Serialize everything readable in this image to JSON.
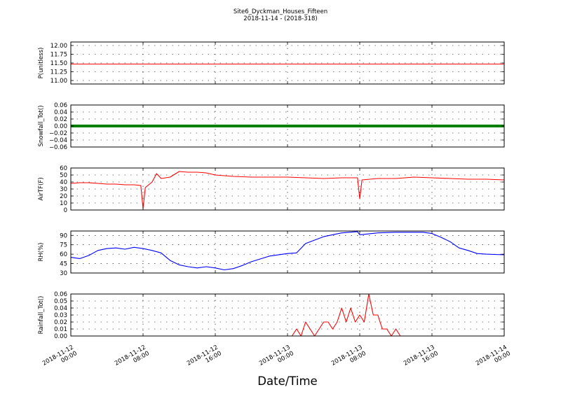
{
  "header": {
    "title": "Site6_Dyckman_Houses_Fifteen",
    "subtitle": "2018-11-14 - (2018-318)"
  },
  "xlabel": "Date/Time",
  "x_range": [
    "2018-11-12 00:00",
    "2018-11-14 00:00"
  ],
  "x_ticks": [
    {
      "value": "2018-11-12 00:00",
      "line1": "2018-11-12",
      "line2": "00:00"
    },
    {
      "value": "2018-11-12 08:00",
      "line1": "2018-11-12",
      "line2": "08:00"
    },
    {
      "value": "2018-11-12 16:00",
      "line1": "2018-11-12",
      "line2": "16:00"
    },
    {
      "value": "2018-11-13 00:00",
      "line1": "2018-11-13",
      "line2": "00:00"
    },
    {
      "value": "2018-11-13 08:00",
      "line1": "2018-11-13",
      "line2": "08:00"
    },
    {
      "value": "2018-11-13 16:00",
      "line1": "2018-11-13",
      "line2": "16:00"
    },
    {
      "value": "2018-11-14 00:00",
      "line1": "2018-11-14",
      "line2": "00:00"
    }
  ],
  "colors": {
    "red": "#ff0000",
    "green": "#008000",
    "blue": "#0000ff",
    "axis": "#000000"
  },
  "chart_data": [
    {
      "type": "line",
      "ylabel": "P(unitless)",
      "ylim": [
        10.9,
        12.1
      ],
      "yticks": [
        "11.00",
        "11.25",
        "11.50",
        "11.75",
        "12.00"
      ],
      "grid": true,
      "series": [
        {
          "color": "#ff0000",
          "x": [
            "2018-11-12 00:00",
            "2018-11-14 00:00"
          ],
          "y": [
            11.47,
            11.47
          ]
        }
      ]
    },
    {
      "type": "line",
      "ylabel": "Snowfall_Tot()",
      "ylim": [
        -0.06,
        0.06
      ],
      "yticks": [
        "−0.06",
        "−0.04",
        "−0.02",
        "0.00",
        "0.02",
        "0.04",
        "0.06"
      ],
      "grid": true,
      "series": [
        {
          "color": "#008000",
          "thick": true,
          "x": [
            "2018-11-12 00:00",
            "2018-11-14 00:00"
          ],
          "y": [
            0,
            0
          ]
        }
      ]
    },
    {
      "type": "line",
      "ylabel": "AirTF(F)",
      "ylim": [
        0,
        60
      ],
      "yticks": [
        "0",
        "10",
        "20",
        "30",
        "40",
        "50",
        "60"
      ],
      "grid": true,
      "series": [
        {
          "color": "#ff0000",
          "x": [
            "2018-11-12 00:00",
            "2018-11-12 01:00",
            "2018-11-12 02:00",
            "2018-11-12 03:00",
            "2018-11-12 04:00",
            "2018-11-12 05:00",
            "2018-11-12 06:00",
            "2018-11-12 07:00",
            "2018-11-12 07:45",
            "2018-11-12 08:00",
            "2018-11-12 08:15",
            "2018-11-12 09:00",
            "2018-11-12 09:30",
            "2018-11-12 10:00",
            "2018-11-12 10:30",
            "2018-11-12 11:00",
            "2018-11-12 12:00",
            "2018-11-12 13:00",
            "2018-11-12 14:00",
            "2018-11-12 15:00",
            "2018-11-12 16:00",
            "2018-11-12 18:00",
            "2018-11-12 20:00",
            "2018-11-12 22:00",
            "2018-11-13 00:00",
            "2018-11-13 02:00",
            "2018-11-13 04:00",
            "2018-11-13 06:00",
            "2018-11-13 07:45",
            "2018-11-13 08:00",
            "2018-11-13 08:15",
            "2018-11-13 10:00",
            "2018-11-13 12:00",
            "2018-11-13 14:00",
            "2018-11-13 16:00",
            "2018-11-13 18:00",
            "2018-11-13 20:00",
            "2018-11-13 22:00",
            "2018-11-14 00:00"
          ],
          "y": [
            38,
            39,
            39,
            38,
            37,
            37,
            36,
            36,
            35,
            2,
            32,
            40,
            52,
            45,
            46,
            47,
            55,
            54,
            54,
            53,
            50,
            48,
            47,
            47,
            47,
            46,
            45,
            46,
            46,
            16,
            43,
            45,
            45,
            47,
            46,
            45,
            44,
            44,
            43
          ]
        }
      ]
    },
    {
      "type": "line",
      "ylabel": "RH(%)",
      "ylim": [
        30,
        97
      ],
      "yticks": [
        "30",
        "45",
        "60",
        "75",
        "90"
      ],
      "grid": true,
      "series": [
        {
          "color": "#0000ff",
          "x": [
            "2018-11-12 00:00",
            "2018-11-12 01:00",
            "2018-11-12 02:00",
            "2018-11-12 03:00",
            "2018-11-12 04:00",
            "2018-11-12 05:00",
            "2018-11-12 06:00",
            "2018-11-12 07:00",
            "2018-11-12 08:00",
            "2018-11-12 09:00",
            "2018-11-12 10:00",
            "2018-11-12 11:00",
            "2018-11-12 12:00",
            "2018-11-12 13:00",
            "2018-11-12 14:00",
            "2018-11-12 15:00",
            "2018-11-12 16:00",
            "2018-11-12 17:00",
            "2018-11-12 18:00",
            "2018-11-12 19:00",
            "2018-11-12 20:00",
            "2018-11-12 22:00",
            "2018-11-13 00:00",
            "2018-11-13 01:00",
            "2018-11-13 02:00",
            "2018-11-13 04:00",
            "2018-11-13 06:00",
            "2018-11-13 07:45",
            "2018-11-13 08:00",
            "2018-11-13 10:00",
            "2018-11-13 12:00",
            "2018-11-13 14:00",
            "2018-11-13 15:00",
            "2018-11-13 16:00",
            "2018-11-13 17:00",
            "2018-11-13 18:00",
            "2018-11-13 19:00",
            "2018-11-13 20:00",
            "2018-11-13 21:00",
            "2018-11-13 22:00",
            "2018-11-14 00:00"
          ],
          "y": [
            55,
            53,
            58,
            66,
            69,
            70,
            68,
            71,
            69,
            66,
            62,
            50,
            43,
            40,
            38,
            40,
            38,
            35,
            37,
            42,
            48,
            57,
            61,
            62,
            77,
            88,
            94,
            96,
            91,
            94,
            95,
            95,
            95,
            93,
            87,
            80,
            70,
            66,
            61,
            60,
            59
          ]
        }
      ]
    },
    {
      "type": "line",
      "ylabel": "Rainfall_Tot()",
      "ylim": [
        0,
        0.06
      ],
      "yticks": [
        "0.00",
        "0.01",
        "0.02",
        "0.03",
        "0.04",
        "0.05",
        "0.06"
      ],
      "grid": true,
      "series": [
        {
          "color": "#ff0000",
          "x": [
            "2018-11-12 00:00",
            "2018-11-13 00:00",
            "2018-11-13 00:30",
            "2018-11-13 01:00",
            "2018-11-13 01:30",
            "2018-11-13 01:45",
            "2018-11-13 02:00",
            "2018-11-13 02:30",
            "2018-11-13 03:00",
            "2018-11-13 03:30",
            "2018-11-13 04:00",
            "2018-11-13 04:30",
            "2018-11-13 05:00",
            "2018-11-13 05:30",
            "2018-11-13 06:00",
            "2018-11-13 06:30",
            "2018-11-13 07:00",
            "2018-11-13 07:30",
            "2018-11-13 08:00",
            "2018-11-13 08:30",
            "2018-11-13 09:00",
            "2018-11-13 09:30",
            "2018-11-13 10:00",
            "2018-11-13 10:30",
            "2018-11-13 11:00",
            "2018-11-13 11:30",
            "2018-11-13 12:00",
            "2018-11-13 12:30",
            "2018-11-13 13:00",
            "2018-11-13 13:30",
            "2018-11-14 00:00"
          ],
          "y": [
            0,
            0,
            0,
            0.01,
            0,
            0.01,
            0.02,
            0.01,
            0,
            0.01,
            0.02,
            0.02,
            0.01,
            0.02,
            0.04,
            0.02,
            0.04,
            0.02,
            0.03,
            0.02,
            0.06,
            0.03,
            0.03,
            0.01,
            0.01,
            0,
            0.01,
            0,
            0,
            0,
            0
          ]
        }
      ]
    }
  ]
}
